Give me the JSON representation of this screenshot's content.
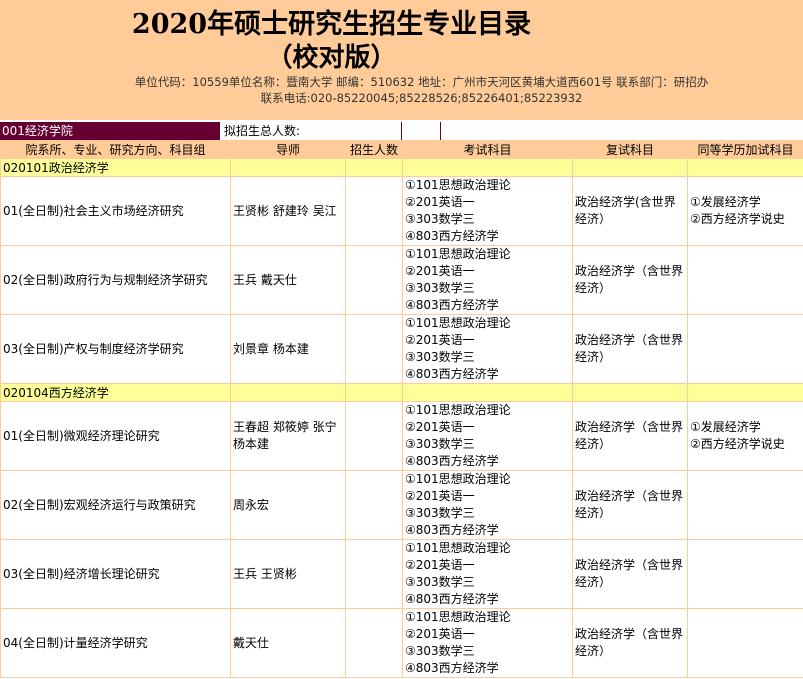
{
  "header": {
    "title": "2020年硕士研究生招生专业目录",
    "subtitle": "（校对版）",
    "info1": "单位代码：10559单位名称：暨南大学  邮编：510632 地址：广州市天河区黄埔大道西601号  联系部门：研招办",
    "info2": "联系电话:020-85220045;85228526;85226401;85223932"
  },
  "dept": {
    "name": "001经济学院",
    "total_label": "拟招生总人数:"
  },
  "columns": [
    "院系所、专业、研究方向、科目组",
    "导师",
    "招生人数",
    "考试科目",
    "复试科目",
    "同等学历加试科目"
  ],
  "groups": [
    {
      "name": "020101政治经济学",
      "rows": [
        {
          "direction": "01(全日制)社会主义市场经济研究",
          "tutors": "王贤彬 舒建玲 吴江",
          "exams": [
            "①101思想政治理论",
            "②201英语一",
            "③303数学三",
            "④803西方经济学"
          ],
          "retest": "政治经济学(含世界经济）",
          "extra": [
            "①发展经济学",
            "②西方经济学说史"
          ]
        },
        {
          "direction": "02(全日制)政府行为与规制经济学研究",
          "tutors": "王兵 戴天仕",
          "exams": [
            "①101思想政治理论",
            "②201英语一",
            "③303数学三",
            "④803西方经济学"
          ],
          "retest": "政治经济学（含世界经济）",
          "extra": []
        },
        {
          "direction": "03(全日制)产权与制度经济学研究",
          "tutors": "刘景章 杨本建",
          "exams": [
            "①101思想政治理论",
            "②201英语一",
            "③303数学三",
            "④803西方经济学"
          ],
          "retest": "政治经济学（含世界经济）",
          "extra": []
        }
      ]
    },
    {
      "name": "020104西方经济学",
      "rows": [
        {
          "direction": "01(全日制)微观经济理论研究",
          "tutors": "王春超 郑筱婷 张宁 杨本建",
          "exams": [
            "①101思想政治理论",
            "②201英语一",
            "③303数学三",
            "④803西方经济学"
          ],
          "retest": "政治经济学（含世界经济）",
          "extra": [
            "①发展经济学",
            "②西方经济学说史"
          ]
        },
        {
          "direction": "02(全日制)宏观经济运行与政策研究",
          "tutors": "周永宏",
          "exams": [
            "①101思想政治理论",
            "②201英语一",
            "③303数学三",
            "④803西方经济学"
          ],
          "retest": "政治经济学（含世界经济）",
          "extra": []
        },
        {
          "direction": "03(全日制)经济增长理论研究",
          "tutors": "王兵 王贤彬",
          "exams": [
            "①101思想政治理论",
            "②201英语一",
            "③303数学三",
            "④803西方经济学"
          ],
          "retest": "政治经济学（含世界经济）",
          "extra": []
        },
        {
          "direction": "04(全日制)计量经济学研究",
          "tutors": "戴天仕",
          "exams": [
            "①101思想政治理论",
            "②201英语一",
            "③303数学三",
            "④803西方经济学"
          ],
          "retest": "政治经济学（含世界经济）",
          "extra": []
        }
      ]
    }
  ]
}
